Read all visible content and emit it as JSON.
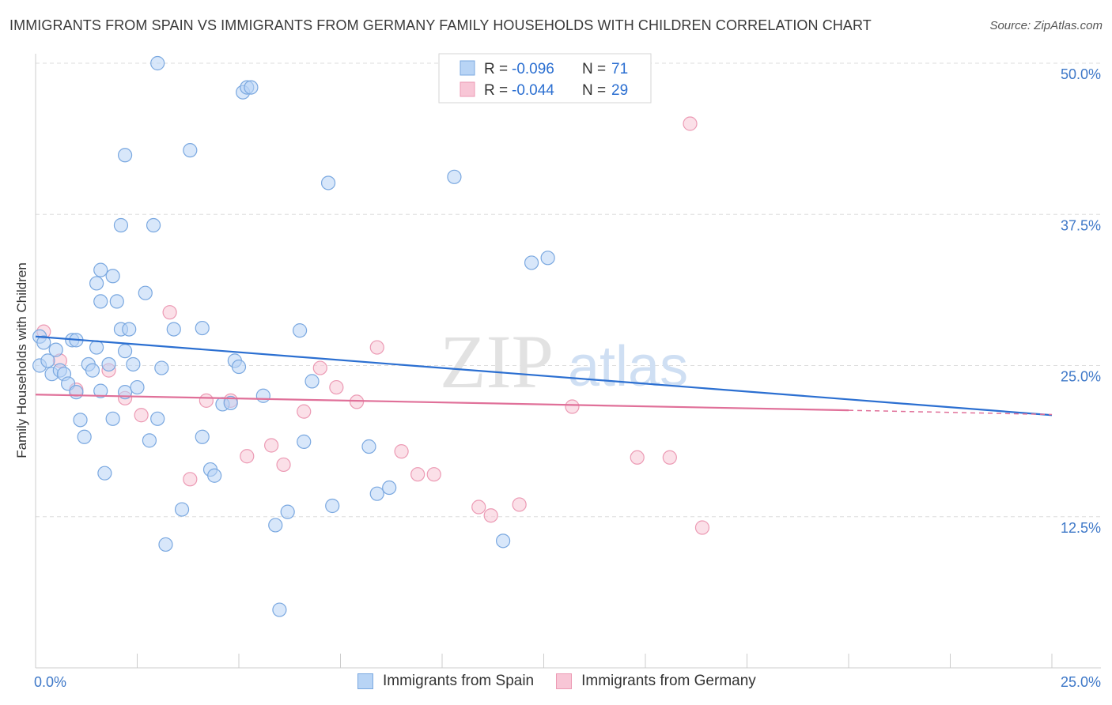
{
  "title": "IMMIGRANTS FROM SPAIN VS IMMIGRANTS FROM GERMANY FAMILY HOUSEHOLDS WITH CHILDREN CORRELATION CHART",
  "source": "Source: ZipAtlas.com",
  "watermark": {
    "zip": "ZIP",
    "atlas": "atlas"
  },
  "colors": {
    "spain_fill": "#b8d4f5",
    "spain_stroke": "#7aa8e0",
    "spain_line": "#2b6fd1",
    "germany_fill": "#f8c6d6",
    "germany_stroke": "#ec9ab4",
    "germany_line": "#e07099",
    "axis_text": "#3e78c8",
    "grid": "#dddddd"
  },
  "legend_top": {
    "spain": {
      "r_label": "R = ",
      "r_value": "-0.096",
      "n_label": "N = ",
      "n_value": "71"
    },
    "germany": {
      "r_label": "R = ",
      "r_value": "-0.044",
      "n_label": "N = ",
      "n_value": "29"
    }
  },
  "legend_bottom": {
    "spain": "Immigrants from Spain",
    "germany": "Immigrants from Germany"
  },
  "chart_data": {
    "type": "scatter",
    "title": "IMMIGRANTS FROM SPAIN VS IMMIGRANTS FROM GERMANY FAMILY HOUSEHOLDS WITH CHILDREN CORRELATION CHART",
    "xlabel": "",
    "ylabel": "Family Households with Children",
    "xlim": [
      0,
      25
    ],
    "ylim": [
      0,
      50
    ],
    "x_tick_labels": [
      "0.0%",
      "25.0%"
    ],
    "y_ticks": [
      12.5,
      25.0,
      37.5,
      50.0
    ],
    "y_tick_labels": [
      "12.5%",
      "25.0%",
      "37.5%",
      "50.0%"
    ],
    "grid": true,
    "series": [
      {
        "name": "Immigrants from Spain",
        "R": -0.096,
        "N": 71,
        "trend": {
          "x0": 0,
          "y0": 27.4,
          "x1": 25,
          "y1": 20.9
        },
        "points": [
          [
            0.1,
            27.4
          ],
          [
            0.2,
            26.9
          ],
          [
            0.1,
            25.0
          ],
          [
            0.3,
            25.4
          ],
          [
            0.4,
            24.3
          ],
          [
            0.5,
            26.3
          ],
          [
            0.6,
            24.6
          ],
          [
            0.7,
            24.3
          ],
          [
            0.8,
            23.5
          ],
          [
            0.9,
            27.1
          ],
          [
            1.0,
            27.1
          ],
          [
            1.0,
            22.8
          ],
          [
            1.1,
            20.5
          ],
          [
            1.2,
            19.1
          ],
          [
            1.3,
            25.1
          ],
          [
            1.4,
            24.6
          ],
          [
            1.5,
            26.5
          ],
          [
            1.5,
            31.8
          ],
          [
            1.6,
            32.9
          ],
          [
            1.6,
            30.3
          ],
          [
            1.6,
            22.9
          ],
          [
            1.7,
            16.1
          ],
          [
            1.8,
            25.1
          ],
          [
            1.9,
            20.6
          ],
          [
            1.9,
            32.4
          ],
          [
            2.0,
            30.3
          ],
          [
            2.1,
            36.6
          ],
          [
            2.1,
            28.0
          ],
          [
            2.2,
            22.8
          ],
          [
            2.2,
            26.2
          ],
          [
            2.2,
            42.4
          ],
          [
            2.3,
            28.0
          ],
          [
            2.4,
            25.1
          ],
          [
            2.5,
            23.2
          ],
          [
            2.7,
            31.0
          ],
          [
            2.8,
            18.8
          ],
          [
            2.9,
            36.6
          ],
          [
            3.0,
            50.0
          ],
          [
            3.0,
            20.6
          ],
          [
            3.1,
            24.8
          ],
          [
            3.2,
            10.2
          ],
          [
            3.4,
            28.0
          ],
          [
            3.6,
            13.1
          ],
          [
            3.8,
            42.8
          ],
          [
            4.1,
            28.1
          ],
          [
            4.1,
            19.1
          ],
          [
            4.3,
            16.4
          ],
          [
            4.4,
            15.9
          ],
          [
            4.6,
            21.8
          ],
          [
            4.8,
            21.9
          ],
          [
            4.9,
            25.4
          ],
          [
            5.0,
            24.9
          ],
          [
            5.1,
            47.6
          ],
          [
            5.2,
            48.0
          ],
          [
            5.3,
            48.0
          ],
          [
            5.6,
            22.5
          ],
          [
            5.9,
            11.8
          ],
          [
            6.0,
            4.8
          ],
          [
            6.2,
            12.9
          ],
          [
            6.5,
            27.9
          ],
          [
            6.6,
            18.7
          ],
          [
            6.8,
            23.7
          ],
          [
            7.2,
            40.1
          ],
          [
            7.3,
            13.4
          ],
          [
            8.2,
            18.3
          ],
          [
            8.4,
            14.4
          ],
          [
            8.7,
            14.9
          ],
          [
            10.3,
            40.6
          ],
          [
            11.5,
            10.5
          ],
          [
            12.2,
            33.5
          ],
          [
            12.6,
            33.9
          ]
        ]
      },
      {
        "name": "Immigrants from Germany",
        "R": -0.044,
        "N": 29,
        "trend": {
          "x0": 0,
          "y0": 22.6,
          "x1": 20,
          "y1": 21.3,
          "dashed_to_x": 25,
          "dashed_to_y": 20.95
        },
        "points": [
          [
            0.2,
            27.8
          ],
          [
            0.6,
            25.4
          ],
          [
            1.0,
            23.0
          ],
          [
            1.8,
            24.6
          ],
          [
            2.2,
            22.3
          ],
          [
            2.6,
            20.9
          ],
          [
            3.3,
            29.4
          ],
          [
            3.8,
            15.6
          ],
          [
            4.2,
            22.1
          ],
          [
            4.8,
            22.1
          ],
          [
            5.2,
            17.5
          ],
          [
            5.8,
            18.4
          ],
          [
            6.1,
            16.8
          ],
          [
            6.6,
            21.2
          ],
          [
            7.0,
            24.8
          ],
          [
            7.4,
            23.2
          ],
          [
            7.9,
            22.0
          ],
          [
            8.4,
            26.5
          ],
          [
            9.0,
            17.9
          ],
          [
            9.4,
            16.0
          ],
          [
            9.8,
            16.0
          ],
          [
            10.9,
            13.3
          ],
          [
            11.2,
            12.6
          ],
          [
            11.9,
            13.5
          ],
          [
            13.2,
            21.6
          ],
          [
            14.8,
            17.4
          ],
          [
            15.6,
            17.4
          ],
          [
            16.1,
            45.0
          ],
          [
            16.4,
            11.6
          ]
        ]
      }
    ]
  }
}
